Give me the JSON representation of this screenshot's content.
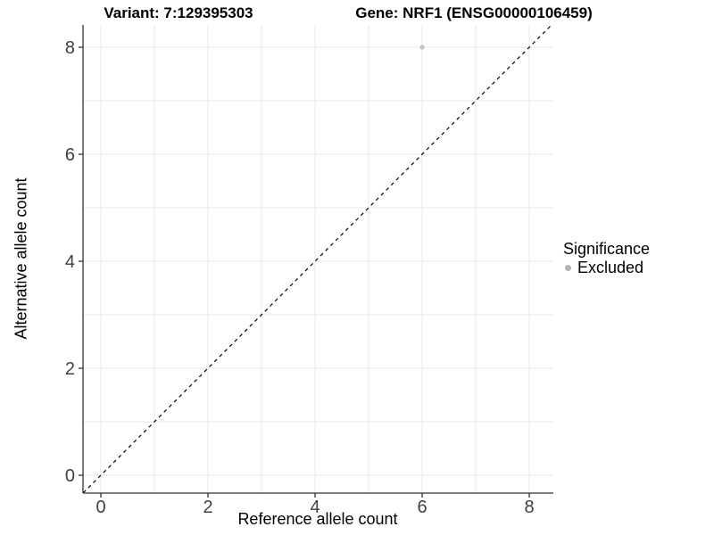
{
  "titles": {
    "left": "Variant: 7:129395303",
    "right": "Gene: NRF1 (ENSG00000106459)"
  },
  "chart_data": {
    "type": "scatter",
    "title_left": "Variant: 7:129395303",
    "title_right": "Gene: NRF1 (ENSG00000106459)",
    "xlabel": "Reference allele count",
    "ylabel": "Alternative allele count",
    "xlim": [
      -0.33,
      8.45
    ],
    "ylim": [
      -0.33,
      8.42
    ],
    "x_ticks": [
      0,
      2,
      4,
      6,
      8
    ],
    "y_ticks": [
      0,
      2,
      4,
      6,
      8
    ],
    "grid_x": [
      0,
      1,
      2,
      3,
      4,
      5,
      6,
      7,
      8
    ],
    "grid_y": [
      0,
      1,
      2,
      3,
      4,
      5,
      6,
      7,
      8
    ],
    "grid": true,
    "points": [
      {
        "x": 6,
        "y": 8,
        "series": "Excluded"
      }
    ],
    "reference_line": {
      "type": "identity y=x",
      "style": "dashed",
      "from": [
        -0.33,
        -0.33
      ],
      "to": [
        8.42,
        8.42
      ]
    },
    "legend": {
      "title": "Significance",
      "position": "right",
      "items": [
        {
          "label": "Excluded",
          "color": "#b3b3b3"
        }
      ]
    }
  },
  "colors": {
    "background": "#ffffff",
    "grid": "#e9e9e9",
    "axis": "#333333",
    "tick_text": "#404040",
    "reference_line": "#000000",
    "point": "#c2c2c2"
  }
}
